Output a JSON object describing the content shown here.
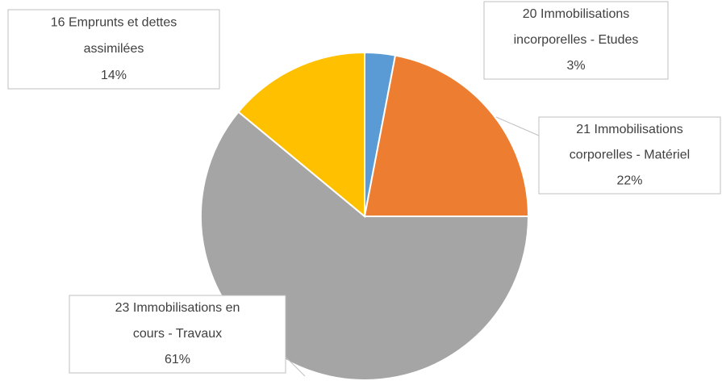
{
  "chart_data": {
    "type": "pie",
    "categories": [
      "20 Immobilisations\nincorporelles - Etudes",
      "21 Immobilisations\ncorporelles - Matériel",
      "23 Immobilisations en\ncours - Travaux",
      "16 Emprunts et dettes\nassimilées"
    ],
    "values": [
      3,
      22,
      61,
      14
    ],
    "value_labels": [
      "3%",
      "22%",
      "61%",
      "14%"
    ],
    "colors": [
      "#5b9bd5",
      "#ed7d31",
      "#a5a5a5",
      "#ffc000"
    ]
  }
}
